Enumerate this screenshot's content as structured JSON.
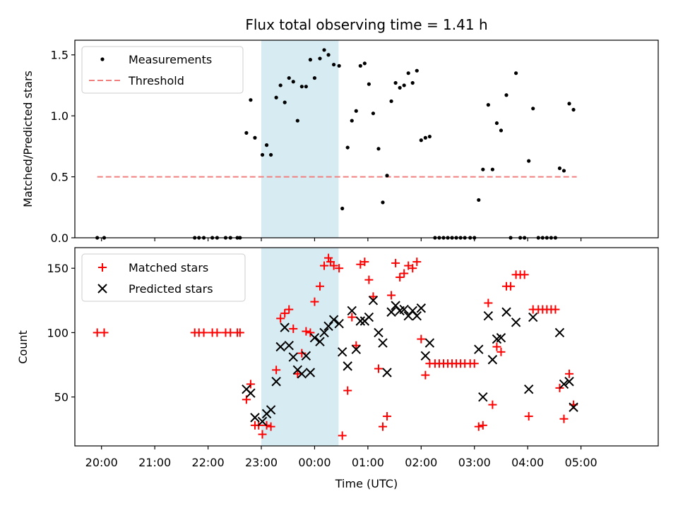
{
  "colors": {
    "measurement": "#000000",
    "threshold": "#f08080",
    "matched": "#ff0000",
    "predicted": "#000000",
    "span": "#add8e6"
  },
  "chart_data": [
    {
      "type": "scatter",
      "title": "Flux total observing time = 1.41 h",
      "xlabel": "",
      "ylabel": "Matched/Predicted stars",
      "x_unit": "hours since 20:00 UTC",
      "xlim": [
        -0.5,
        10.45
      ],
      "ylim": [
        0,
        1.62
      ],
      "yticks": [
        0,
        0.5,
        1.0,
        1.5
      ],
      "ytick_labels": [
        "0.0",
        "0.5",
        "1.0",
        "1.5"
      ],
      "highlight_span": [
        3.0,
        4.45
      ],
      "threshold": {
        "y": 0.5,
        "x_range": [
          -0.08,
          8.92
        ],
        "label": "Threshold"
      },
      "legend": {
        "position": "upper-left",
        "entries": [
          "Measurements",
          "Threshold"
        ]
      },
      "series": [
        {
          "name": "Measurements",
          "points": [
            [
              -0.08,
              0
            ],
            [
              0.05,
              0
            ],
            [
              1.75,
              0
            ],
            [
              1.83,
              0
            ],
            [
              1.92,
              0
            ],
            [
              2.08,
              0
            ],
            [
              2.17,
              0
            ],
            [
              2.33,
              0
            ],
            [
              2.42,
              0
            ],
            [
              2.55,
              0
            ],
            [
              2.6,
              0
            ],
            [
              2.72,
              0.86
            ],
            [
              2.8,
              1.13
            ],
            [
              2.88,
              0.82
            ],
            [
              3.02,
              0.68
            ],
            [
              3.1,
              0.76
            ],
            [
              3.18,
              0.68
            ],
            [
              3.28,
              1.15
            ],
            [
              3.36,
              1.25
            ],
            [
              3.44,
              1.11
            ],
            [
              3.52,
              1.31
            ],
            [
              3.6,
              1.28
            ],
            [
              3.68,
              0.96
            ],
            [
              3.76,
              1.24
            ],
            [
              3.84,
              1.24
            ],
            [
              3.92,
              1.46
            ],
            [
              4.0,
              1.31
            ],
            [
              4.1,
              1.47
            ],
            [
              4.18,
              1.54
            ],
            [
              4.26,
              1.5
            ],
            [
              4.36,
              1.42
            ],
            [
              4.46,
              1.41
            ],
            [
              4.52,
              0.24
            ],
            [
              4.62,
              0.74
            ],
            [
              4.7,
              0.96
            ],
            [
              4.78,
              1.04
            ],
            [
              4.86,
              1.41
            ],
            [
              4.94,
              1.43
            ],
            [
              5.02,
              1.26
            ],
            [
              5.1,
              1.02
            ],
            [
              5.2,
              0.73
            ],
            [
              5.28,
              0.29
            ],
            [
              5.36,
              0.51
            ],
            [
              5.44,
              1.12
            ],
            [
              5.52,
              1.27
            ],
            [
              5.6,
              1.23
            ],
            [
              5.68,
              1.25
            ],
            [
              5.76,
              1.35
            ],
            [
              5.84,
              1.27
            ],
            [
              5.92,
              1.37
            ],
            [
              6.0,
              0.8
            ],
            [
              6.08,
              0.82
            ],
            [
              6.16,
              0.83
            ],
            [
              6.26,
              0
            ],
            [
              6.34,
              0
            ],
            [
              6.42,
              0
            ],
            [
              6.5,
              0
            ],
            [
              6.58,
              0
            ],
            [
              6.66,
              0
            ],
            [
              6.74,
              0
            ],
            [
              6.82,
              0
            ],
            [
              6.92,
              0
            ],
            [
              7.0,
              0
            ],
            [
              7.08,
              0.31
            ],
            [
              7.16,
              0.56
            ],
            [
              7.26,
              1.09
            ],
            [
              7.34,
              0.56
            ],
            [
              7.42,
              0.94
            ],
            [
              7.5,
              0.88
            ],
            [
              7.6,
              1.17
            ],
            [
              7.68,
              0
            ],
            [
              7.78,
              1.35
            ],
            [
              7.86,
              0
            ],
            [
              7.94,
              0
            ],
            [
              8.02,
              0.63
            ],
            [
              8.1,
              1.06
            ],
            [
              8.2,
              0
            ],
            [
              8.28,
              0
            ],
            [
              8.36,
              0
            ],
            [
              8.44,
              0
            ],
            [
              8.52,
              0
            ],
            [
              8.6,
              0.57
            ],
            [
              8.68,
              0.55
            ],
            [
              8.78,
              1.1
            ],
            [
              8.86,
              1.05
            ]
          ]
        }
      ]
    },
    {
      "type": "scatter",
      "title": "",
      "xlabel": "Time (UTC)",
      "ylabel": "Count",
      "x_unit": "hours since 20:00 UTC",
      "xlim": [
        -0.5,
        10.45
      ],
      "ylim": [
        12,
        166
      ],
      "xticks": [
        0,
        1,
        2,
        3,
        4,
        5,
        6,
        7,
        8,
        9
      ],
      "xtick_labels": [
        "20:00",
        "21:00",
        "22:00",
        "23:00",
        "00:00",
        "01:00",
        "02:00",
        "03:00",
        "04:00",
        "05:00"
      ],
      "yticks": [
        50,
        100,
        150
      ],
      "ytick_labels": [
        "50",
        "100",
        "150"
      ],
      "highlight_span": [
        3.0,
        4.45
      ],
      "legend": {
        "position": "upper-left",
        "entries": [
          "Matched stars",
          "Predicted stars"
        ]
      },
      "series": [
        {
          "name": "Matched stars",
          "marker": "plus",
          "points": [
            [
              -0.08,
              100
            ],
            [
              0.05,
              100
            ],
            [
              1.75,
              100
            ],
            [
              1.83,
              100
            ],
            [
              1.92,
              100
            ],
            [
              2.08,
              100
            ],
            [
              2.17,
              100
            ],
            [
              2.33,
              100
            ],
            [
              2.42,
              100
            ],
            [
              2.55,
              100
            ],
            [
              2.6,
              100
            ],
            [
              2.72,
              48
            ],
            [
              2.8,
              60
            ],
            [
              2.88,
              28
            ],
            [
              2.95,
              28
            ],
            [
              3.02,
              21
            ],
            [
              3.1,
              28
            ],
            [
              3.18,
              27
            ],
            [
              3.28,
              71
            ],
            [
              3.36,
              111
            ],
            [
              3.44,
              115
            ],
            [
              3.52,
              118
            ],
            [
              3.6,
              103
            ],
            [
              3.68,
              68
            ],
            [
              3.76,
              84
            ],
            [
              3.84,
              101
            ],
            [
              3.92,
              100
            ],
            [
              4.0,
              124
            ],
            [
              4.1,
              136
            ],
            [
              4.18,
              152
            ],
            [
              4.26,
              158
            ],
            [
              4.3,
              155
            ],
            [
              4.36,
              152
            ],
            [
              4.46,
              150
            ],
            [
              4.52,
              20
            ],
            [
              4.62,
              55
            ],
            [
              4.7,
              112
            ],
            [
              4.78,
              90
            ],
            [
              4.86,
              153
            ],
            [
              4.94,
              155
            ],
            [
              5.02,
              141
            ],
            [
              5.1,
              128
            ],
            [
              5.2,
              72
            ],
            [
              5.28,
              27
            ],
            [
              5.36,
              35
            ],
            [
              5.44,
              129
            ],
            [
              5.52,
              154
            ],
            [
              5.6,
              143
            ],
            [
              5.68,
              146
            ],
            [
              5.76,
              152
            ],
            [
              5.84,
              150
            ],
            [
              5.92,
              155
            ],
            [
              6.0,
              95
            ],
            [
              6.08,
              67
            ],
            [
              6.16,
              76
            ],
            [
              6.26,
              76
            ],
            [
              6.34,
              76
            ],
            [
              6.42,
              76
            ],
            [
              6.5,
              76
            ],
            [
              6.58,
              76
            ],
            [
              6.66,
              76
            ],
            [
              6.74,
              76
            ],
            [
              6.82,
              76
            ],
            [
              6.92,
              76
            ],
            [
              7.0,
              76
            ],
            [
              7.08,
              27
            ],
            [
              7.16,
              28
            ],
            [
              7.26,
              123
            ],
            [
              7.34,
              44
            ],
            [
              7.42,
              89
            ],
            [
              7.5,
              85
            ],
            [
              7.6,
              136
            ],
            [
              7.68,
              136
            ],
            [
              7.78,
              145
            ],
            [
              7.86,
              145
            ],
            [
              7.94,
              145
            ],
            [
              8.02,
              35
            ],
            [
              8.1,
              118
            ],
            [
              8.2,
              118
            ],
            [
              8.28,
              118
            ],
            [
              8.36,
              118
            ],
            [
              8.44,
              118
            ],
            [
              8.52,
              118
            ],
            [
              8.6,
              57
            ],
            [
              8.68,
              33
            ],
            [
              8.78,
              68
            ],
            [
              8.86,
              44
            ]
          ]
        },
        {
          "name": "Predicted stars",
          "marker": "x",
          "points": [
            [
              2.72,
              56
            ],
            [
              2.8,
              53
            ],
            [
              2.88,
              34
            ],
            [
              3.02,
              31
            ],
            [
              3.1,
              37
            ],
            [
              3.18,
              40
            ],
            [
              3.28,
              62
            ],
            [
              3.36,
              89
            ],
            [
              3.44,
              104
            ],
            [
              3.52,
              90
            ],
            [
              3.6,
              81
            ],
            [
              3.68,
              71
            ],
            [
              3.76,
              68
            ],
            [
              3.84,
              82
            ],
            [
              3.92,
              69
            ],
            [
              4.0,
              96
            ],
            [
              4.1,
              93
            ],
            [
              4.18,
              100
            ],
            [
              4.26,
              105
            ],
            [
              4.36,
              110
            ],
            [
              4.46,
              107
            ],
            [
              4.52,
              85
            ],
            [
              4.62,
              74
            ],
            [
              4.7,
              117
            ],
            [
              4.78,
              87
            ],
            [
              4.86,
              109
            ],
            [
              4.94,
              109
            ],
            [
              5.02,
              112
            ],
            [
              5.1,
              125
            ],
            [
              5.2,
              100
            ],
            [
              5.28,
              92
            ],
            [
              5.36,
              69
            ],
            [
              5.44,
              116
            ],
            [
              5.52,
              121
            ],
            [
              5.6,
              117
            ],
            [
              5.68,
              118
            ],
            [
              5.76,
              113
            ],
            [
              5.84,
              117
            ],
            [
              5.92,
              113
            ],
            [
              6.0,
              119
            ],
            [
              6.08,
              82
            ],
            [
              6.16,
              92
            ],
            [
              7.08,
              87
            ],
            [
              7.16,
              50
            ],
            [
              7.26,
              113
            ],
            [
              7.34,
              79
            ],
            [
              7.42,
              95
            ],
            [
              7.5,
              96
            ],
            [
              7.6,
              116
            ],
            [
              7.78,
              108
            ],
            [
              8.02,
              56
            ],
            [
              8.1,
              112
            ],
            [
              8.6,
              100
            ],
            [
              8.68,
              60
            ],
            [
              8.78,
              62
            ],
            [
              8.86,
              42
            ]
          ]
        }
      ]
    }
  ]
}
